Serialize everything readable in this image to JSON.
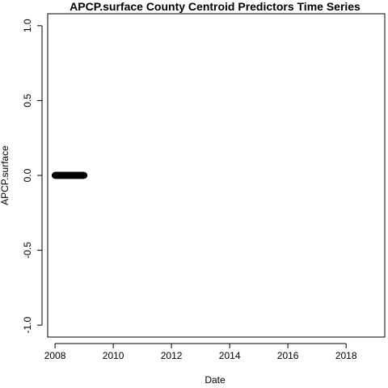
{
  "chart_data": {
    "type": "scatter",
    "title": "APCP.surface County Centroid Predictors Time Series",
    "xlabel": "Date",
    "ylabel": "APCP.surface",
    "x_axis_type": "date",
    "xlim": [
      "2007-10-01",
      "2019-05-01"
    ],
    "ylim": [
      -1.08,
      1.08
    ],
    "x_ticks": [
      "2008",
      "2010",
      "2012",
      "2014",
      "2016",
      "2018"
    ],
    "y_ticks": [
      "-1.0",
      "-0.5",
      "0.0",
      "0.5",
      "1.0"
    ],
    "grid": false,
    "marker_color": "#000000",
    "series": [
      {
        "x_range": [
          "2008-01-01",
          "2008-12-31"
        ],
        "y": 0.0
      }
    ]
  }
}
